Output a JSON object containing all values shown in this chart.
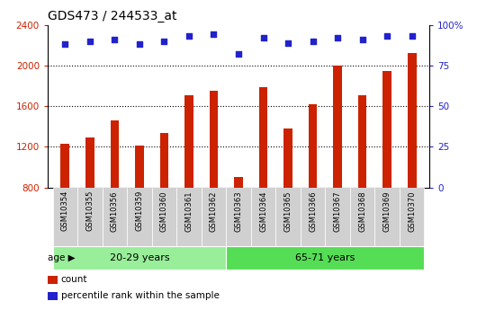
{
  "title": "GDS473 / 244533_at",
  "samples": [
    "GSM10354",
    "GSM10355",
    "GSM10356",
    "GSM10359",
    "GSM10360",
    "GSM10361",
    "GSM10362",
    "GSM10363",
    "GSM10364",
    "GSM10365",
    "GSM10366",
    "GSM10367",
    "GSM10368",
    "GSM10369",
    "GSM10370"
  ],
  "counts": [
    1230,
    1290,
    1460,
    1215,
    1340,
    1710,
    1750,
    900,
    1790,
    1380,
    1620,
    2000,
    1710,
    1950,
    2120
  ],
  "percentile_ranks": [
    88,
    90,
    91,
    88,
    90,
    93,
    94,
    82,
    92,
    89,
    90,
    92,
    91,
    93,
    93
  ],
  "groups": [
    {
      "label": "20-29 years",
      "start": 0,
      "end": 6,
      "color": "#99ee99"
    },
    {
      "label": "65-71 years",
      "start": 7,
      "end": 14,
      "color": "#55dd55"
    }
  ],
  "age_label": "age",
  "ylim_left": [
    800,
    2400
  ],
  "ylim_right": [
    0,
    100
  ],
  "yticks_left": [
    800,
    1200,
    1600,
    2000,
    2400
  ],
  "yticks_right": [
    0,
    25,
    50,
    75,
    100
  ],
  "bar_color": "#cc2200",
  "dot_color": "#2222cc",
  "bar_bottom": 800,
  "bar_width": 0.35,
  "bg_color": "#ffffff",
  "tick_bg_color": "#d0d0d0",
  "legend_count_label": "count",
  "legend_pct_label": "percentile rank within the sample"
}
